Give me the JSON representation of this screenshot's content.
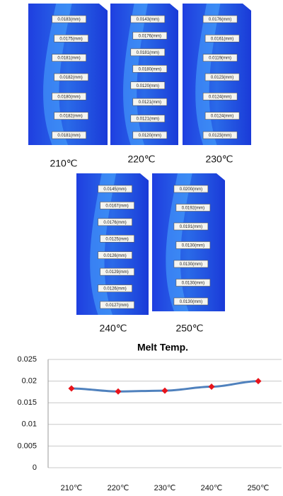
{
  "panels": [
    {
      "label": "210℃",
      "measurements": [
        "0.0183(mm)",
        "0.0175(mm)",
        "0.0181(mm)",
        "0.0182(mm)",
        "0.0180(mm)",
        "0.0182(mm)",
        "0.0181(mm)"
      ]
    },
    {
      "label": "220℃",
      "measurements": [
        "0.0143(mm)",
        "0.0176(mm)",
        "0.0181(mm)",
        "0.0180(mm)",
        "0.0120(mm)",
        "0.0121(mm)",
        "0.0121(mm)",
        "0.0120(mm)"
      ]
    },
    {
      "label": "230℃",
      "measurements": [
        "0.0176(mm)",
        "0.0161(mm)",
        "0.0119(mm)",
        "0.0123(mm)",
        "0.0124(mm)",
        "0.0124(mm)",
        "0.0123(mm)"
      ]
    },
    {
      "label": "240℃",
      "measurements": [
        "0.0145(mm)",
        "0.0167(mm)",
        "0.0176(mm)",
        "0.0125(mm)",
        "0.0126(mm)",
        "0.0129(mm)",
        "0.0126(mm)",
        "0.0127(mm)"
      ]
    },
    {
      "label": "250℃",
      "measurements": [
        "0.0200(mm)",
        "0.0192(mm)",
        "0.0191(mm)",
        "0.0130(mm)",
        "0.0130(mm)",
        "0.0130(mm)",
        "0.0130(mm)"
      ]
    }
  ],
  "chart_data": {
    "type": "line",
    "title": "Melt Temp.",
    "categories": [
      "210℃",
      "220℃",
      "230℃",
      "240℃",
      "250℃"
    ],
    "series": [
      {
        "color": "#4f81bd",
        "marker_color": "#e8141b",
        "values": [
          0.0183,
          0.0176,
          0.0178,
          0.0187,
          0.02
        ]
      }
    ],
    "ylim": [
      0,
      0.025
    ],
    "yticks": [
      0,
      0.005,
      0.01,
      0.015,
      0.02,
      0.025
    ],
    "grid": true
  }
}
